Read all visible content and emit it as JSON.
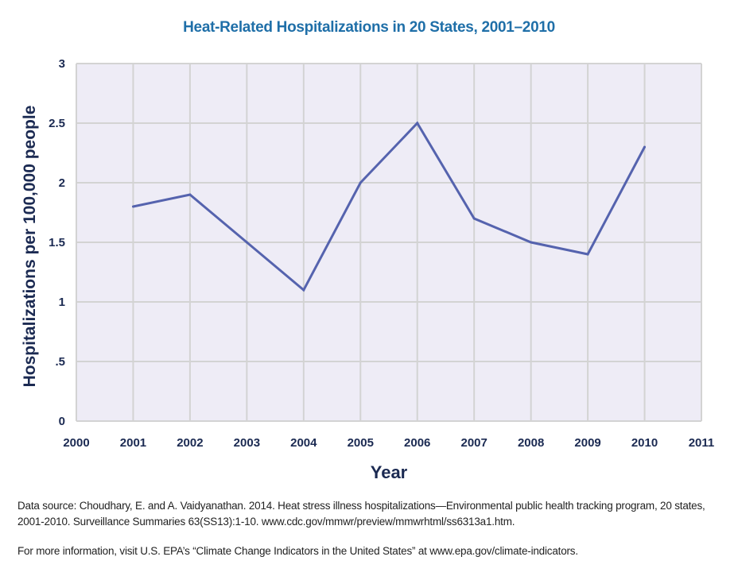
{
  "chart_data": {
    "type": "line",
    "title": "Heat-Related Hospitalizations in 20 States, 2001–2010",
    "xlabel": "Year",
    "ylabel": "Hospitalizations per 100,000 people",
    "x": [
      2001,
      2002,
      2003,
      2004,
      2005,
      2006,
      2007,
      2008,
      2009,
      2010
    ],
    "series": [
      {
        "name": "Hospitalizations per 100,000 people",
        "values": [
          1.8,
          1.9,
          1.5,
          1.1,
          2.0,
          2.5,
          1.7,
          1.5,
          1.4,
          2.3
        ],
        "color": "#5563ae"
      }
    ],
    "xlim": [
      2000,
      2011
    ],
    "ylim": [
      0,
      3
    ],
    "xticks": [
      "2000",
      "2001",
      "2002",
      "2003",
      "2004",
      "2005",
      "2006",
      "2007",
      "2008",
      "2009",
      "2010",
      "2011"
    ],
    "yticks": [
      {
        "value": 0,
        "label": "0"
      },
      {
        "value": 0.5,
        "label": ".5"
      },
      {
        "value": 1,
        "label": "1"
      },
      {
        "value": 1.5,
        "label": "1.5"
      },
      {
        "value": 2,
        "label": "2"
      },
      {
        "value": 2.5,
        "label": "2.5"
      },
      {
        "value": 3,
        "label": "3"
      }
    ],
    "grid": true,
    "legend": "none"
  },
  "colors": {
    "title": "#1f6fa8",
    "axis_text": "#1b2a52",
    "plot_background": "#eeecf6",
    "grid": "#d3d3d3",
    "line": "#5563ae"
  },
  "footnotes": {
    "source": "Data source: Choudhary, E. and A. Vaidyanathan. 2014. Heat stress illness hospitalizations—Environmental public health tracking program, 20 states, 2001-2010. Surveillance Summaries 63(SS13):1-10. www.cdc.gov/mmwr/preview/mmwrhtml/ss6313a1.htm.",
    "more_info": "For more information, visit U.S. EPA’s “Climate Change Indicators in the United States” at www.epa.gov/climate-indicators."
  }
}
